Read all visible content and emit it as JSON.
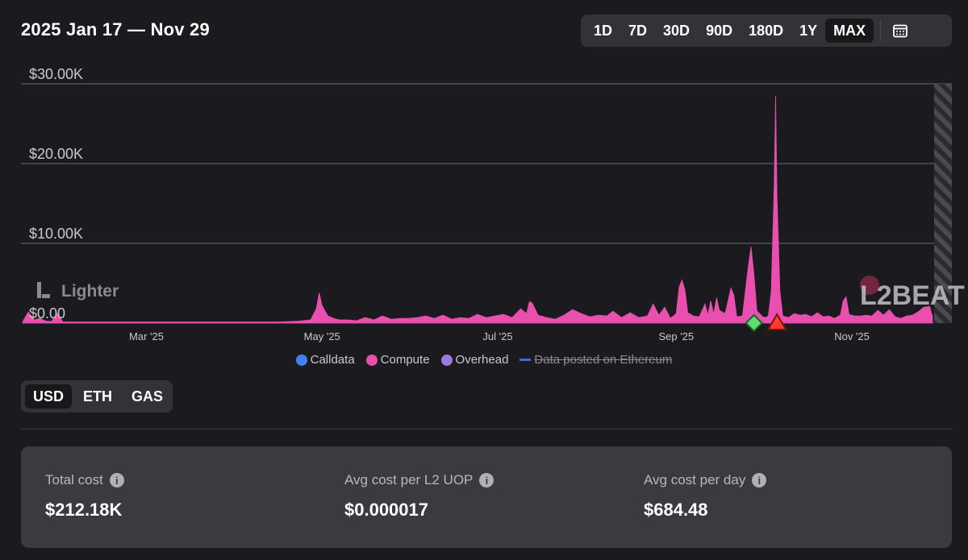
{
  "header": {
    "title": "2025 Jan 17 — Nov 29"
  },
  "range_selector": {
    "options": [
      "1D",
      "7D",
      "30D",
      "90D",
      "180D",
      "1Y",
      "MAX"
    ],
    "selected": "MAX"
  },
  "unit_selector": {
    "options": [
      "USD",
      "ETH",
      "GAS"
    ],
    "selected": "USD"
  },
  "chart_data": {
    "type": "area",
    "title": "",
    "project": "Lighter",
    "watermark": "L2BEAT",
    "y_ticks": [
      "$0.00",
      "$10.00K",
      "$20.00K",
      "$30.00K"
    ],
    "ylim": [
      0,
      30000
    ],
    "x_labels": [
      "Mar '25",
      "May '25",
      "Jul '25",
      "Sep '25",
      "Nov '25"
    ],
    "x_label_days": [
      43,
      104,
      165,
      227,
      288
    ],
    "x_range_days": [
      0,
      316
    ],
    "series": [
      {
        "name": "Compute",
        "color": "#e84fae",
        "points": [
          [
            0,
            150
          ],
          [
            2,
            1400
          ],
          [
            4,
            400
          ],
          [
            6,
            600
          ],
          [
            8,
            250
          ],
          [
            10,
            200
          ],
          [
            12,
            1200
          ],
          [
            14,
            150
          ],
          [
            18,
            150
          ],
          [
            22,
            150
          ],
          [
            26,
            150
          ],
          [
            30,
            150
          ],
          [
            36,
            150
          ],
          [
            42,
            150
          ],
          [
            48,
            150
          ],
          [
            54,
            150
          ],
          [
            60,
            150
          ],
          [
            66,
            150
          ],
          [
            72,
            150
          ],
          [
            78,
            150
          ],
          [
            84,
            150
          ],
          [
            90,
            150
          ],
          [
            96,
            250
          ],
          [
            100,
            400
          ],
          [
            102,
            1800
          ],
          [
            103,
            3800
          ],
          [
            104,
            2200
          ],
          [
            106,
            900
          ],
          [
            108,
            600
          ],
          [
            110,
            400
          ],
          [
            113,
            400
          ],
          [
            116,
            300
          ],
          [
            119,
            700
          ],
          [
            122,
            400
          ],
          [
            125,
            900
          ],
          [
            128,
            500
          ],
          [
            131,
            600
          ],
          [
            134,
            600
          ],
          [
            137,
            700
          ],
          [
            140,
            900
          ],
          [
            143,
            600
          ],
          [
            146,
            1000
          ],
          [
            149,
            500
          ],
          [
            152,
            700
          ],
          [
            155,
            600
          ],
          [
            158,
            1100
          ],
          [
            161,
            700
          ],
          [
            164,
            900
          ],
          [
            167,
            1100
          ],
          [
            170,
            700
          ],
          [
            173,
            1800
          ],
          [
            175,
            1200
          ],
          [
            176,
            2700
          ],
          [
            177,
            2500
          ],
          [
            179,
            1000
          ],
          [
            182,
            700
          ],
          [
            185,
            500
          ],
          [
            188,
            1000
          ],
          [
            191,
            1700
          ],
          [
            194,
            1200
          ],
          [
            197,
            800
          ],
          [
            200,
            1000
          ],
          [
            203,
            900
          ],
          [
            205,
            1500
          ],
          [
            208,
            700
          ],
          [
            211,
            1300
          ],
          [
            214,
            700
          ],
          [
            217,
            900
          ],
          [
            219,
            2400
          ],
          [
            221,
            1000
          ],
          [
            223,
            2000
          ],
          [
            225,
            600
          ],
          [
            227,
            1200
          ],
          [
            228,
            4500
          ],
          [
            229,
            5400
          ],
          [
            230,
            4200
          ],
          [
            231,
            1300
          ],
          [
            233,
            900
          ],
          [
            235,
            800
          ],
          [
            237,
            2400
          ],
          [
            238,
            1000
          ],
          [
            239,
            2800
          ],
          [
            240,
            1100
          ],
          [
            241,
            3200
          ],
          [
            242,
            1600
          ],
          [
            244,
            1200
          ],
          [
            246,
            4400
          ],
          [
            247,
            3500
          ],
          [
            248,
            800
          ],
          [
            250,
            900
          ],
          [
            252,
            7000
          ],
          [
            253,
            9600
          ],
          [
            254,
            6000
          ],
          [
            255,
            1500
          ],
          [
            256,
            1200
          ],
          [
            257,
            800
          ],
          [
            258,
            700
          ],
          [
            259,
            900
          ],
          [
            260,
            4000
          ],
          [
            261,
            17000
          ],
          [
            261.5,
            28500
          ],
          [
            262,
            16000
          ],
          [
            263,
            4000
          ],
          [
            264,
            900
          ],
          [
            266,
            700
          ],
          [
            268,
            1200
          ],
          [
            270,
            1000
          ],
          [
            272,
            1100
          ],
          [
            274,
            800
          ],
          [
            276,
            1300
          ],
          [
            278,
            800
          ],
          [
            280,
            900
          ],
          [
            282,
            600
          ],
          [
            284,
            1000
          ],
          [
            285,
            2800
          ],
          [
            286,
            3300
          ],
          [
            287,
            1100
          ],
          [
            289,
            900
          ],
          [
            291,
            900
          ],
          [
            293,
            1000
          ],
          [
            295,
            900
          ],
          [
            297,
            1600
          ],
          [
            299,
            1000
          ],
          [
            301,
            1700
          ],
          [
            303,
            800
          ],
          [
            305,
            600
          ],
          [
            307,
            900
          ],
          [
            309,
            1000
          ],
          [
            311,
            1400
          ],
          [
            313,
            2000
          ],
          [
            315,
            2100
          ],
          [
            316,
            800
          ]
        ]
      }
    ],
    "markers": [
      {
        "type": "diamond",
        "color": "#5ee06f",
        "day": 254
      },
      {
        "type": "triangle",
        "color": "#ff3a2f",
        "day": 262
      }
    ],
    "legend": [
      {
        "name": "Calldata",
        "color": "#3f82f3",
        "hidden": false
      },
      {
        "name": "Compute",
        "color": "#e84fae",
        "hidden": false
      },
      {
        "name": "Overhead",
        "color": "#9a7bdc",
        "hidden": false
      },
      {
        "name": "Data posted on Ethereum",
        "color": "#4a6cc7",
        "hidden": true
      }
    ]
  },
  "stats": [
    {
      "label": "Total cost",
      "value": "$212.18K"
    },
    {
      "label": "Avg cost per L2 UOP",
      "value": "$0.000017"
    },
    {
      "label": "Avg cost per day",
      "value": "$684.48"
    }
  ],
  "colors": {
    "background": "#1b1b1f",
    "panel": "#323237",
    "accent": "#e84fae"
  }
}
